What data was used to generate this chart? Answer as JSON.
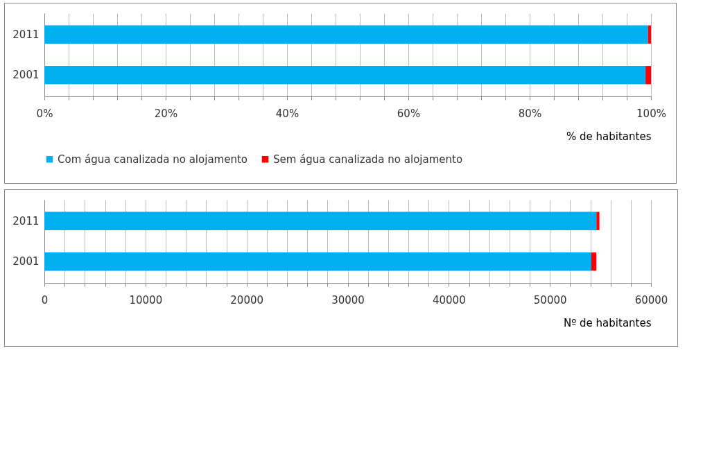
{
  "chart_data": [
    {
      "type": "bar",
      "orientation": "horizontal",
      "stacked": true,
      "categories": [
        "2011",
        "2001"
      ],
      "xlabel": "% de habitantes",
      "legend": "bottom",
      "grid": "x",
      "series": [
        {
          "name": "Com água canalizada no alojamento",
          "color": "#00b0f0",
          "values": [
            99.5,
            99.1
          ]
        },
        {
          "name": "Sem água canalizada no alojamento",
          "color": "#ff0000",
          "values": [
            0.5,
            0.9
          ]
        }
      ],
      "xlim": [
        0,
        100
      ],
      "xticks": [
        {
          "value": 0,
          "label": "0%"
        },
        {
          "value": 4,
          "label": null
        },
        {
          "value": 8,
          "label": null
        },
        {
          "value": 12,
          "label": null
        },
        {
          "value": 16,
          "label": null
        },
        {
          "value": 20,
          "label": "20%"
        },
        {
          "value": 24,
          "label": null
        },
        {
          "value": 28,
          "label": null
        },
        {
          "value": 32,
          "label": null
        },
        {
          "value": 36,
          "label": null
        },
        {
          "value": 40,
          "label": "40%"
        },
        {
          "value": 44,
          "label": null
        },
        {
          "value": 48,
          "label": null
        },
        {
          "value": 52,
          "label": null
        },
        {
          "value": 56,
          "label": null
        },
        {
          "value": 60,
          "label": "60%"
        },
        {
          "value": 64,
          "label": null
        },
        {
          "value": 68,
          "label": null
        },
        {
          "value": 72,
          "label": null
        },
        {
          "value": 76,
          "label": null
        },
        {
          "value": 80,
          "label": "80%"
        },
        {
          "value": 84,
          "label": null
        },
        {
          "value": 88,
          "label": null
        },
        {
          "value": 92,
          "label": null
        },
        {
          "value": 96,
          "label": null
        },
        {
          "value": 100,
          "label": "100%"
        }
      ]
    },
    {
      "type": "bar",
      "orientation": "horizontal",
      "stacked": true,
      "categories": [
        "2011",
        "2001"
      ],
      "xlabel": "Nº de habitantes",
      "grid": "x",
      "series": [
        {
          "color": "#00b0f0",
          "values": [
            54600,
            54100
          ]
        },
        {
          "color": "#ff0000",
          "values": [
            300,
            500
          ]
        }
      ],
      "xlim": [
        0,
        60000
      ],
      "xticks": [
        0,
        {
          "value": 2000,
          "label": null
        },
        {
          "value": 4000,
          "label": null
        },
        {
          "value": 6000,
          "label": null
        },
        {
          "value": 8000,
          "label": null
        },
        10000,
        {
          "value": 12000,
          "label": null
        },
        {
          "value": 14000,
          "label": null
        },
        {
          "value": 16000,
          "label": null
        },
        {
          "value": 18000,
          "label": null
        },
        20000,
        {
          "value": 22000,
          "label": null
        },
        {
          "value": 24000,
          "label": null
        },
        {
          "value": 26000,
          "label": null
        },
        {
          "value": 28000,
          "label": null
        },
        30000,
        {
          "value": 32000,
          "label": null
        },
        {
          "value": 34000,
          "label": null
        },
        {
          "value": 36000,
          "label": null
        },
        {
          "value": 38000,
          "label": null
        },
        40000,
        {
          "value": 42000,
          "label": null
        },
        {
          "value": 44000,
          "label": null
        },
        {
          "value": 46000,
          "label": null
        },
        {
          "value": 48000,
          "label": null
        },
        50000,
        {
          "value": 52000,
          "label": null
        },
        {
          "value": 54000,
          "label": null
        },
        {
          "value": 56000,
          "label": null
        },
        {
          "value": 58000,
          "label": null
        },
        60000
      ]
    }
  ]
}
